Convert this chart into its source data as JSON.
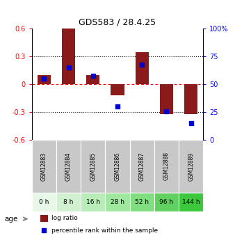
{
  "title": "GDS583 / 28.4.25",
  "samples": [
    "GSM12883",
    "GSM12884",
    "GSM12885",
    "GSM12886",
    "GSM12887",
    "GSM12888",
    "GSM12889"
  ],
  "ages": [
    "0 h",
    "8 h",
    "16 h",
    "28 h",
    "52 h",
    "96 h",
    "144 h"
  ],
  "log_ratio": [
    0.1,
    0.6,
    0.1,
    -0.12,
    0.35,
    -0.32,
    -0.32
  ],
  "percentile": [
    55,
    65,
    58,
    30,
    68,
    26,
    15
  ],
  "bar_color": "#8B1A1A",
  "point_color": "#0000CC",
  "ylim_left": [
    -0.6,
    0.6
  ],
  "yticks_left": [
    -0.6,
    -0.3,
    0.0,
    0.3,
    0.6
  ],
  "yticks_right": [
    0,
    25,
    50,
    75,
    100
  ],
  "ytick_labels_right": [
    "0",
    "25",
    "50",
    "75",
    "100%"
  ],
  "age_colors": [
    "#e8f8e8",
    "#d0f0d0",
    "#b8ecb8",
    "#a0e8a0",
    "#80de80",
    "#60d060",
    "#3cc83c"
  ],
  "sample_box_color": "#c8c8c8",
  "bar_width": 0.55
}
